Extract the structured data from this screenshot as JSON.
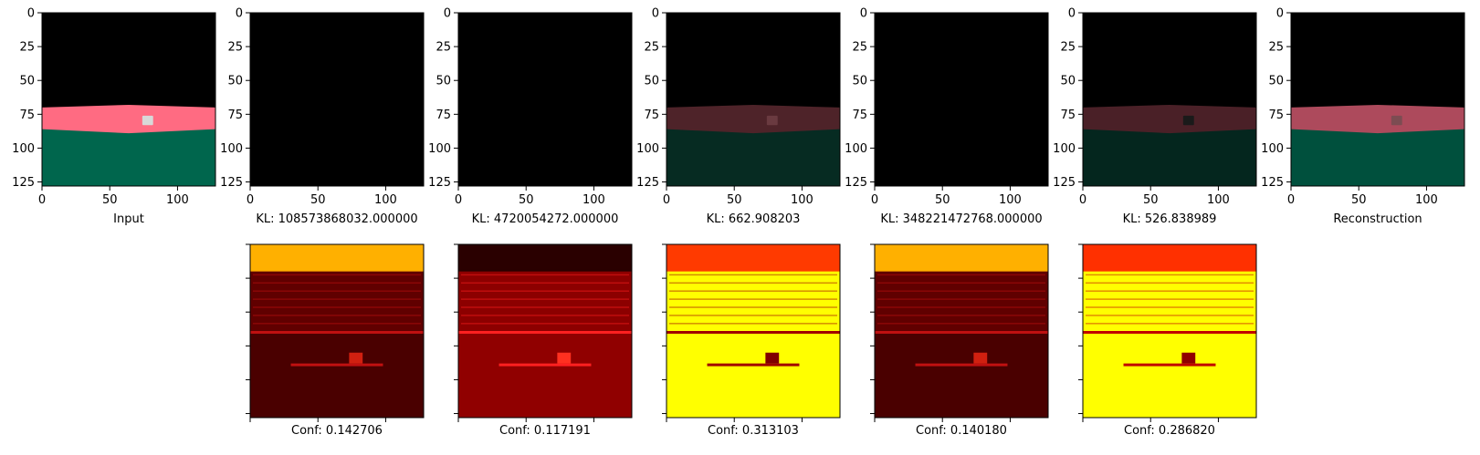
{
  "chart_data": {
    "type": "heatmap",
    "image_size": 128,
    "x_ticks": [
      0,
      50,
      100
    ],
    "y_ticks": [
      0,
      25,
      50,
      75,
      100,
      125
    ],
    "top_row": [
      {
        "label": "Input",
        "style": "input"
      },
      {
        "label": "KL: 108573868032.000000",
        "style": "black"
      },
      {
        "label": "KL: 4720054272.000000",
        "style": "black"
      },
      {
        "label": "KL: 662.908203",
        "style": "dim"
      },
      {
        "label": "KL: 348221472768.000000",
        "style": "black"
      },
      {
        "label": "KL: 526.838989",
        "style": "dark"
      },
      {
        "label": "Reconstruction",
        "style": "recon"
      }
    ],
    "bottom_row": [
      {
        "label": "Conf: 0.142706",
        "style": "heat-dark"
      },
      {
        "label": "Conf: 0.117191",
        "style": "heat-red"
      },
      {
        "label": "Conf: 0.313103",
        "style": "heat-yellow"
      },
      {
        "label": "Conf: 0.140180",
        "style": "heat-dark"
      },
      {
        "label": "Conf: 0.286820",
        "style": "heat-yellow2"
      }
    ]
  }
}
